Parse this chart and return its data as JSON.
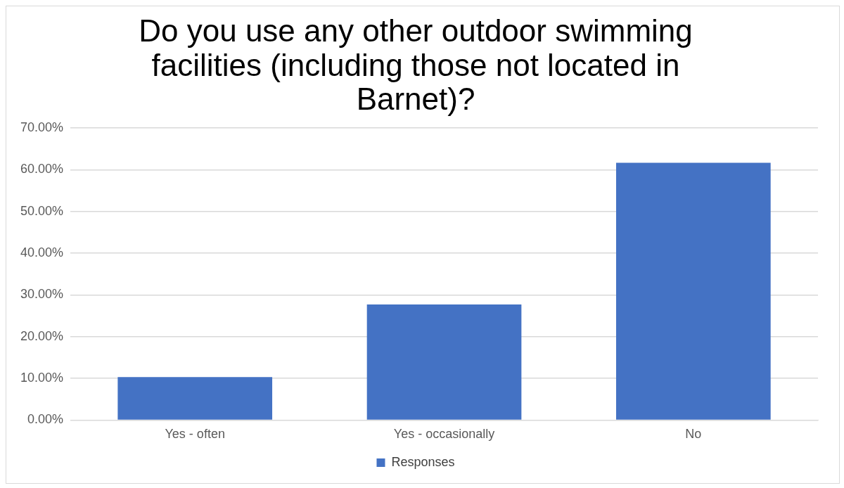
{
  "chart_data": {
    "type": "bar",
    "title": "Do you use any other outdoor swimming facilities (including those not located in Barnet)?",
    "categories": [
      "Yes - often",
      "Yes - occasionally",
      "No"
    ],
    "series": [
      {
        "name": "Responses",
        "color": "#4472c4",
        "values": [
          10.3,
          27.7,
          61.7
        ]
      }
    ],
    "ylim": [
      0,
      70
    ],
    "yticks": [
      {
        "value": 0,
        "label": "0.00%"
      },
      {
        "value": 10,
        "label": "10.00%"
      },
      {
        "value": 20,
        "label": "20.00%"
      },
      {
        "value": 30,
        "label": "30.00%"
      },
      {
        "value": 40,
        "label": "40.00%"
      },
      {
        "value": 50,
        "label": "50.00%"
      },
      {
        "value": 60,
        "label": "60.00%"
      },
      {
        "value": 70,
        "label": "70.00%"
      }
    ],
    "grid": "y",
    "legend": "bottom"
  }
}
